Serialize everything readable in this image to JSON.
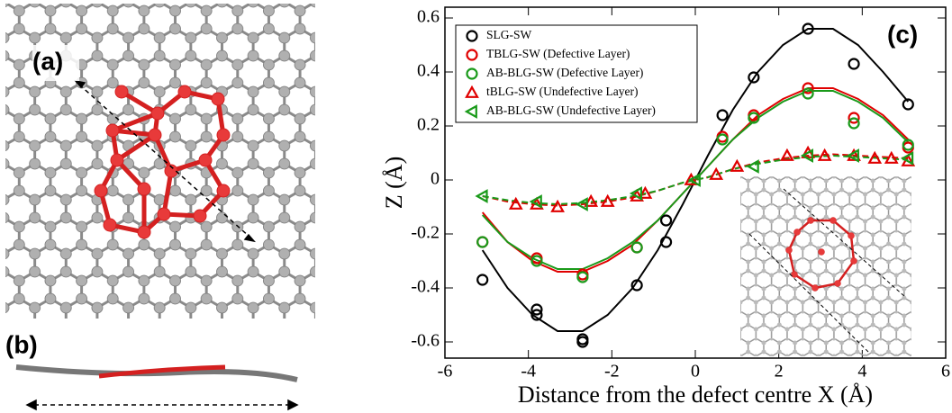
{
  "panel_labels": [
    "(a)",
    "(b)",
    "(c)"
  ],
  "chart_data": {
    "type": "scatter",
    "xlabel": "Distance from the defect centre X (Å)",
    "ylabel": "Z (Å)",
    "xlim": [
      -6,
      6
    ],
    "ylim": [
      -0.66,
      0.64
    ],
    "xticks": [
      -6,
      -4,
      -2,
      0,
      2,
      4,
      6
    ],
    "yticks": [
      -0.6,
      -0.4,
      -0.2,
      0,
      0.2,
      0.4,
      0.6
    ],
    "legend": "upper left",
    "series": [
      {
        "name": "SLG-SW",
        "color": "#000000",
        "marker": "circle",
        "x": [
          -5.1,
          -3.8,
          -3.8,
          -2.7,
          -2.7,
          -1.4,
          -0.7,
          -0.7,
          0.65,
          1.4,
          2.7,
          3.8,
          5.1
        ],
        "values": [
          -0.37,
          -0.48,
          -0.5,
          -0.59,
          -0.6,
          -0.39,
          -0.23,
          -0.15,
          0.24,
          0.38,
          0.56,
          0.43,
          0.28
        ]
      },
      {
        "name": "TBLG-SW (Defective Layer)",
        "color": "#e00000",
        "marker": "circle",
        "x": [
          -5.1,
          -3.8,
          -2.7,
          -1.4,
          0.65,
          1.4,
          2.7,
          3.8,
          5.1
        ],
        "values": [
          -0.23,
          -0.29,
          -0.35,
          -0.25,
          0.16,
          0.24,
          0.34,
          0.23,
          0.12
        ]
      },
      {
        "name": "AB-BLG-SW (Defective Layer)",
        "color": "#1a9a1a",
        "marker": "circle",
        "x": [
          -5.1,
          -3.8,
          -2.7,
          -1.4,
          0.65,
          1.4,
          2.7,
          3.8,
          5.1
        ],
        "values": [
          -0.23,
          -0.3,
          -0.36,
          -0.25,
          0.15,
          0.23,
          0.32,
          0.21,
          0.13
        ]
      },
      {
        "name": "tBLG-SW (Undefective Layer)",
        "color": "#e00000",
        "marker": "triangle-up",
        "x": [
          -4.3,
          -3.8,
          -3.3,
          -2.5,
          -2.1,
          -1.4,
          -1.2,
          -0.1,
          0.5,
          1.0,
          2.2,
          2.7,
          3.1,
          3.8,
          4.3,
          4.7,
          5.1
        ],
        "values": [
          -0.09,
          -0.09,
          -0.1,
          -0.08,
          -0.08,
          -0.06,
          -0.05,
          0,
          0.02,
          0.05,
          0.09,
          0.1,
          0.09,
          0.09,
          0.08,
          0.08,
          0.07
        ]
      },
      {
        "name": "AB-BLG-SW (Undefective Layer)",
        "color": "#1a9a1a",
        "marker": "triangle-left",
        "x": [
          -5.1,
          -3.8,
          -2.7,
          -1.4,
          0,
          1.4,
          2.7,
          3.8,
          5.1
        ],
        "values": [
          -0.06,
          -0.08,
          -0.09,
          -0.05,
          0,
          0.05,
          0.09,
          0.09,
          0.08
        ]
      }
    ],
    "fits": [
      {
        "color": "#000000",
        "dash": false,
        "x": [
          -5.1,
          -4.5,
          -3.9,
          -3.3,
          -2.7,
          -2.1,
          -1.5,
          -0.9,
          -0.3,
          0.3,
          0.9,
          1.5,
          2.1,
          2.7,
          3.3,
          3.9,
          4.5,
          5.1
        ],
        "values": [
          -0.26,
          -0.4,
          -0.5,
          -0.56,
          -0.56,
          -0.5,
          -0.4,
          -0.26,
          -0.09,
          0.09,
          0.26,
          0.4,
          0.5,
          0.56,
          0.56,
          0.5,
          0.4,
          0.29
        ]
      },
      {
        "color": "#e00000",
        "dash": false,
        "x": [
          -5.1,
          -4.5,
          -3.9,
          -3.3,
          -2.7,
          -2.1,
          -1.5,
          -0.9,
          -0.3,
          0.3,
          0.9,
          1.5,
          2.1,
          2.7,
          3.3,
          3.9,
          4.5,
          5.1
        ],
        "values": [
          -0.12,
          -0.23,
          -0.3,
          -0.34,
          -0.34,
          -0.3,
          -0.24,
          -0.15,
          -0.05,
          0.05,
          0.15,
          0.24,
          0.3,
          0.34,
          0.34,
          0.3,
          0.24,
          0.15
        ]
      },
      {
        "color": "#1a9a1a",
        "dash": false,
        "x": [
          -5.1,
          -4.5,
          -3.9,
          -3.3,
          -2.7,
          -2.1,
          -1.5,
          -0.9,
          -0.3,
          0.3,
          0.9,
          1.5,
          2.1,
          2.7,
          3.3,
          3.9,
          4.5,
          5.1
        ],
        "values": [
          -0.13,
          -0.23,
          -0.29,
          -0.33,
          -0.33,
          -0.29,
          -0.23,
          -0.15,
          -0.05,
          0.05,
          0.15,
          0.23,
          0.29,
          0.33,
          0.33,
          0.29,
          0.23,
          0.14
        ]
      },
      {
        "color": "#e00000",
        "dash": true,
        "x": [
          -5.1,
          -4.5,
          -3.9,
          -3.3,
          -2.7,
          -2.1,
          -1.5,
          -0.9,
          -0.3,
          0.3,
          0.9,
          1.5,
          2.1,
          2.7,
          3.3,
          3.9,
          4.5,
          5.1
        ],
        "values": [
          -0.06,
          -0.08,
          -0.09,
          -0.095,
          -0.09,
          -0.08,
          -0.065,
          -0.04,
          -0.01,
          0.01,
          0.04,
          0.065,
          0.08,
          0.09,
          0.095,
          0.09,
          0.085,
          0.08
        ]
      },
      {
        "color": "#1a9a1a",
        "dash": true,
        "x": [
          -5.1,
          -4.5,
          -3.9,
          -3.3,
          -2.7,
          -2.1,
          -1.5,
          -0.9,
          -0.3,
          0.3,
          0.9,
          1.5,
          2.1,
          2.7,
          3.3,
          3.9,
          4.5,
          5.1
        ],
        "values": [
          -0.06,
          -0.075,
          -0.085,
          -0.09,
          -0.085,
          -0.075,
          -0.06,
          -0.04,
          -0.01,
          0.01,
          0.04,
          0.06,
          0.075,
          0.085,
          0.09,
          0.085,
          0.08,
          0.075
        ]
      }
    ]
  }
}
